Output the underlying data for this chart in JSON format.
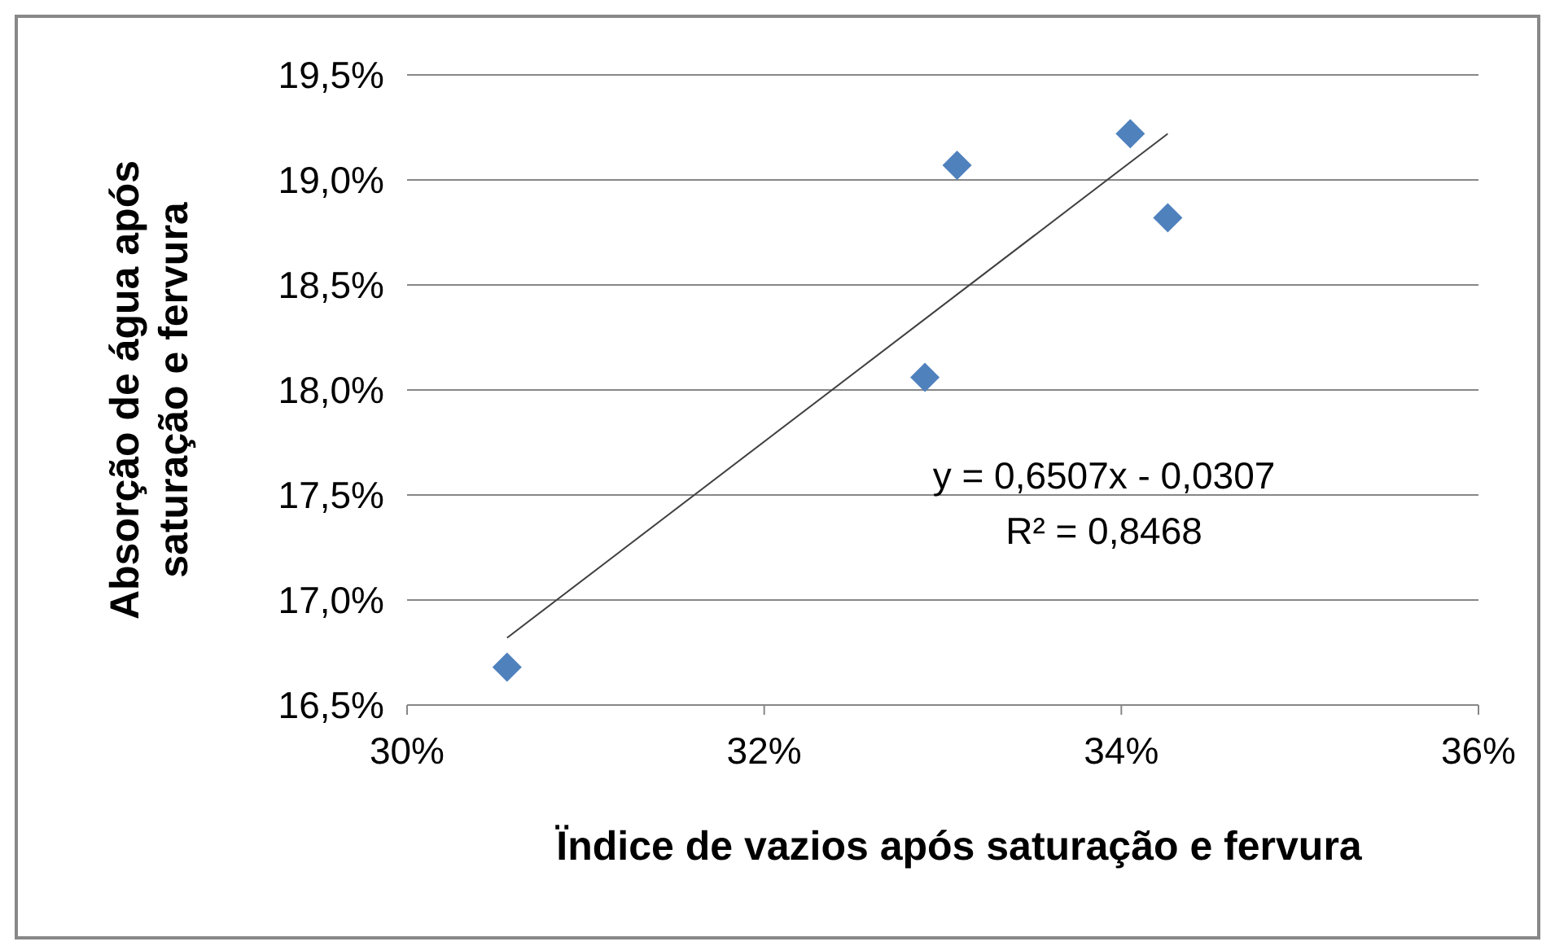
{
  "chart_data": {
    "type": "scatter",
    "xlabel": "Ïndice de vazios após saturação e fervura",
    "ylabel": "Absorção de água após saturação e fervura",
    "x": [
      30.56,
      32.9,
      33.08,
      34.05,
      34.26
    ],
    "series": [
      {
        "color": "#4f81bd",
        "marker": "diamond",
        "values": [
          16.68,
          18.06,
          19.07,
          19.22,
          18.82
        ]
      },
      {
        "type": "line",
        "color": "#404040",
        "x": [
          30.56,
          34.26
        ],
        "values": [
          16.82,
          19.22
        ]
      }
    ],
    "xlim": [
      30,
      36
    ],
    "xticks": [
      {
        "value": 30,
        "label": "30%"
      },
      {
        "value": 32,
        "label": "32%"
      },
      {
        "value": 34,
        "label": "34%"
      },
      {
        "value": 36,
        "label": "36%"
      }
    ],
    "ylim": [
      16.5,
      19.5
    ],
    "yticks": [
      {
        "value": 16.5,
        "label": "16,5%"
      },
      {
        "value": 17,
        "label": "17,0%"
      },
      {
        "value": 17.5,
        "label": "17,5%"
      },
      {
        "value": 18,
        "label": "18,0%"
      },
      {
        "value": 18.5,
        "label": "18,5%"
      },
      {
        "value": 19,
        "label": "19,0%"
      },
      {
        "value": 19.5,
        "label": "19,5%"
      }
    ],
    "grid": "y",
    "annotations": [
      "y = 0,6507x - 0,0307",
      "R² = 0,8468"
    ]
  }
}
